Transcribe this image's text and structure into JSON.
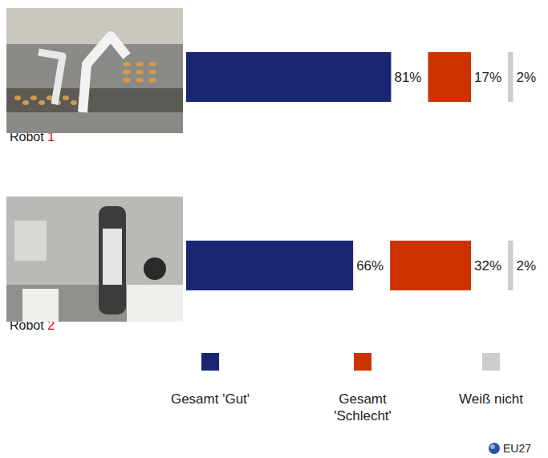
{
  "chart_data": {
    "type": "bar",
    "orientation": "horizontal",
    "stacked": true,
    "data_labels": true,
    "tick_labels": false,
    "legend": "bottom",
    "xlim": [
      0,
      100
    ],
    "categories": [
      "Robot 1",
      "Robot 2"
    ],
    "series": [
      {
        "name": "Gesamt 'Gut'",
        "color": "#1a2674",
        "values": [
          81,
          66
        ],
        "value_labels": [
          "81%",
          "66%"
        ]
      },
      {
        "name": "Gesamt 'Schlecht'",
        "color": "#cc3300",
        "values": [
          17,
          32
        ],
        "value_labels": [
          "17%",
          "32%"
        ]
      },
      {
        "name": "Weiß nicht",
        "color": "#cccccc",
        "values": [
          2,
          2
        ],
        "value_labels": [
          "2%",
          "2%"
        ]
      }
    ],
    "annotations": [
      "EU27"
    ]
  }
}
